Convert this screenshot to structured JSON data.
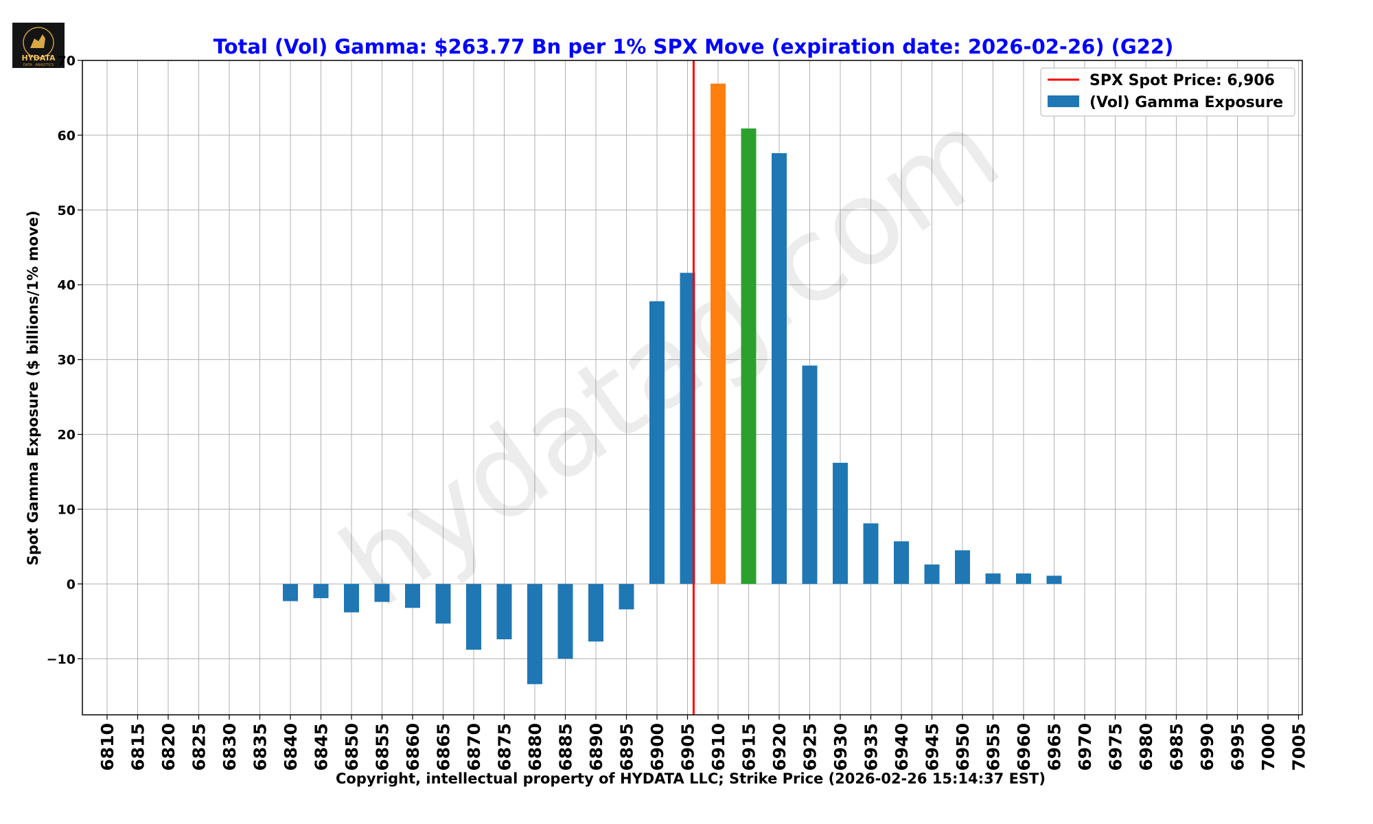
{
  "chart_data": {
    "type": "bar",
    "title": "Total (Vol) Gamma: $263.77 Bn per 1% SPX Move (expiration date: 2026-02-26) (G22)",
    "title_color": "#0000ff",
    "xlabel": "Copyright, intellectual property of HYDATA LLC; Strike Price (2026-02-26 15:14:37 EST)",
    "ylabel": "Spot Gamma Exposure ($ billions/1% move)",
    "categories": [
      "6810",
      "6815",
      "6820",
      "6825",
      "6830",
      "6835",
      "6840",
      "6845",
      "6850",
      "6855",
      "6860",
      "6865",
      "6870",
      "6875",
      "6880",
      "6885",
      "6890",
      "6895",
      "6900",
      "6905",
      "6910",
      "6915",
      "6920",
      "6925",
      "6930",
      "6935",
      "6940",
      "6945",
      "6950",
      "6955",
      "6960",
      "6965",
      "6970",
      "6975",
      "6980",
      "6985",
      "6990",
      "6995",
      "7000",
      "7005"
    ],
    "values": [
      null,
      null,
      null,
      null,
      null,
      null,
      -2.3,
      -1.9,
      -3.8,
      -2.4,
      -3.2,
      -5.3,
      -8.8,
      -7.4,
      -13.4,
      -10.0,
      -7.7,
      -3.4,
      37.8,
      41.6,
      66.9,
      60.9,
      57.6,
      29.2,
      16.2,
      8.1,
      5.7,
      2.6,
      4.5,
      1.4,
      1.4,
      1.1,
      null,
      null,
      null,
      null,
      null,
      null,
      null,
      null
    ],
    "highlight_colors": {
      "6910": "#ff7f0e",
      "6915": "#2ca02c"
    },
    "bar_color": "#1f77b4",
    "ylim": [
      -17.5,
      70
    ],
    "yticks": [
      -10,
      0,
      10,
      20,
      30,
      40,
      50,
      60,
      70
    ],
    "ytick_labels": [
      "−10",
      "0",
      "10",
      "20",
      "30",
      "40",
      "50",
      "60",
      "70"
    ],
    "spot_price": 6906,
    "spot_color": "#ff0000",
    "grid": true,
    "legend_position": "top-right",
    "legend": [
      {
        "label": "SPX Spot Price: 6,906",
        "kind": "line",
        "color": "#ff0000"
      },
      {
        "label": "(Vol) Gamma Exposure",
        "kind": "patch",
        "color": "#1f77b4"
      }
    ]
  },
  "watermark": "hydatag.com",
  "logo": {
    "text": "HYDATA",
    "subtext": "DATA · ANALYTICS"
  }
}
